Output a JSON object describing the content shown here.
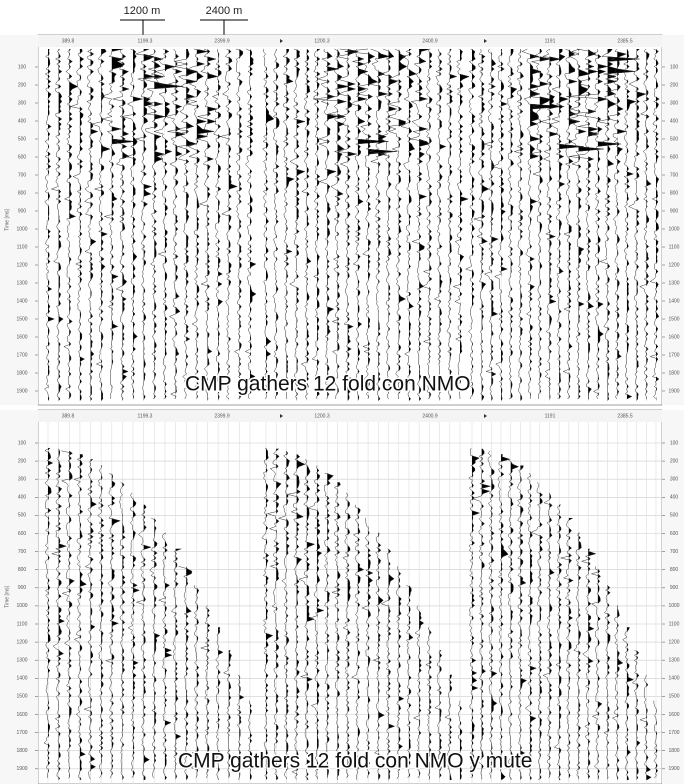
{
  "scale_labels": [
    "1200 m",
    "2400 m"
  ],
  "panels": [
    {
      "caption": "CMP gathers 12 fold con NMO",
      "header_labels": [
        "389.8",
        "1199.3",
        "2399.9",
        "1200.3",
        "2400.9",
        "1191",
        "2385.5"
      ],
      "time_axis_title": "Time [ms]",
      "time_labels": [
        100,
        200,
        300,
        400,
        500,
        600,
        700,
        800,
        900,
        1000,
        1100,
        1200,
        1300,
        1400,
        1500,
        1600,
        1700,
        1800,
        1900
      ]
    },
    {
      "caption": "CMP gathers 12 fold con NMO y mute",
      "header_labels": [
        "389.8",
        "1199.3",
        "2399.9",
        "1200.3",
        "2400.9",
        "1191",
        "2385.5"
      ],
      "time_axis_title": "Time [ms]",
      "time_labels": [
        100,
        200,
        300,
        400,
        500,
        600,
        700,
        800,
        900,
        1000,
        1100,
        1200,
        1300,
        1400,
        1500,
        1600,
        1700,
        1800,
        1900
      ]
    }
  ]
}
